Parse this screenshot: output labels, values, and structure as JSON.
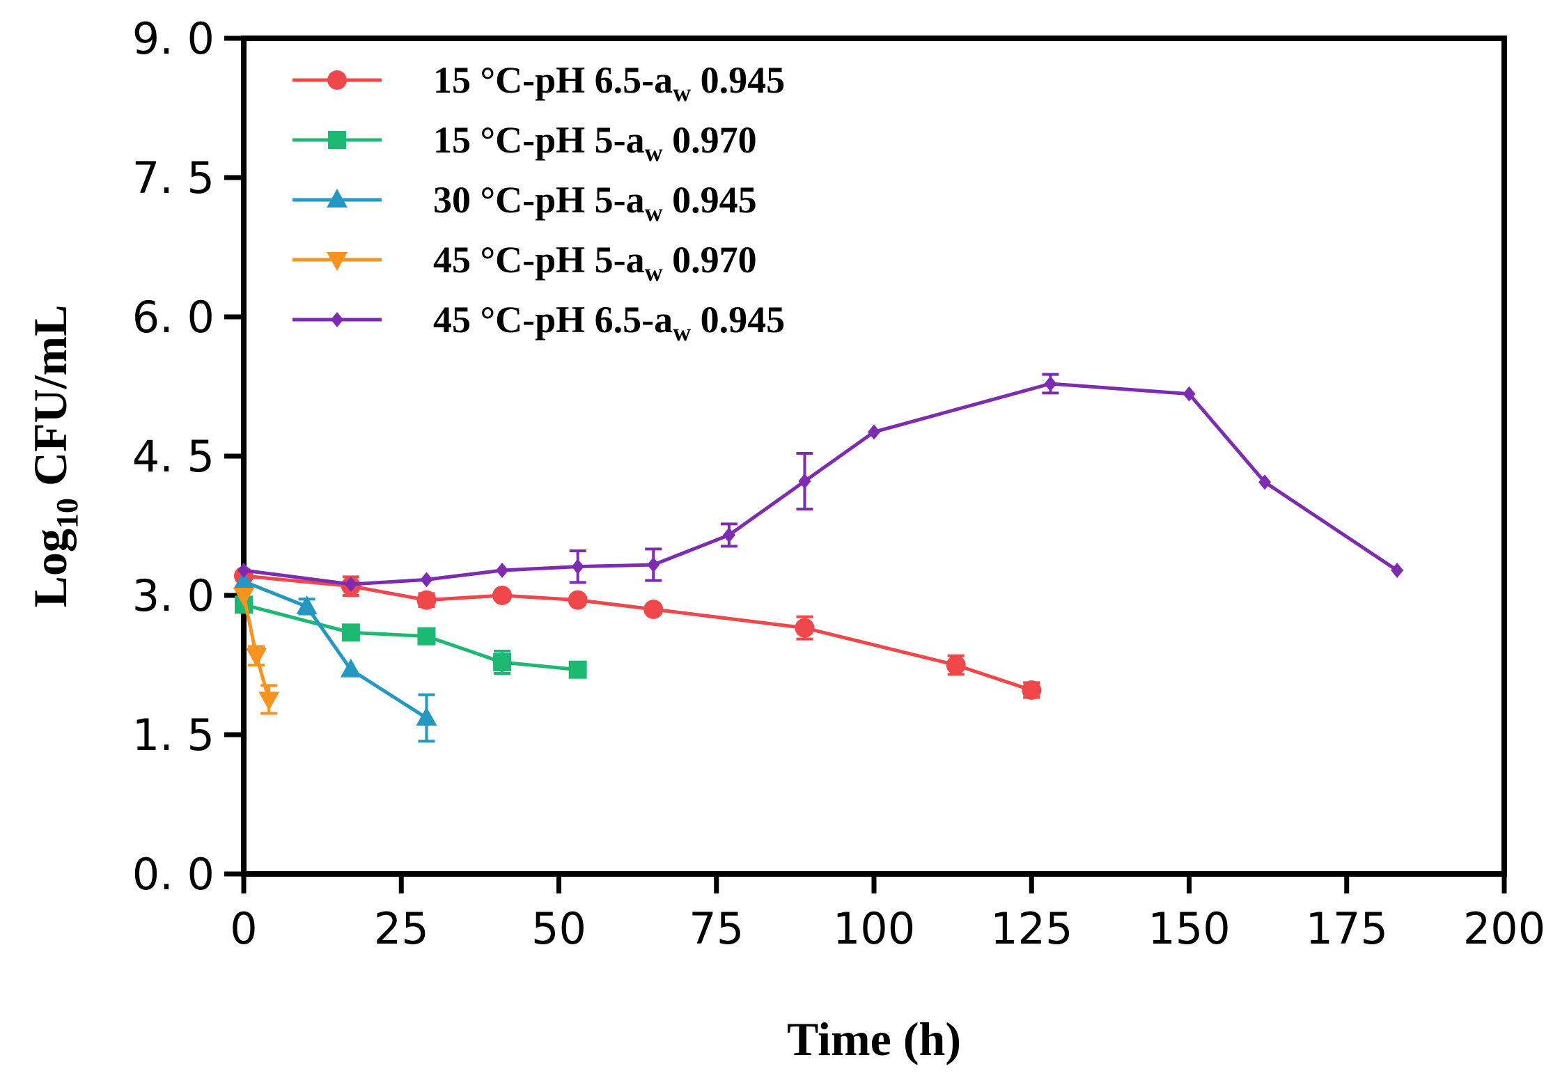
{
  "chart_data": {
    "type": "line",
    "title": "",
    "xlabel": "Time (h)",
    "ylabel": "Log10 CFU/mL",
    "ylabel_parts": {
      "main": "Log",
      "sub": "10",
      "rest": " CFU/mL"
    },
    "xlim": [
      0,
      200
    ],
    "ylim": [
      0,
      9
    ],
    "x_ticks": [
      0,
      25,
      50,
      75,
      100,
      125,
      150,
      175,
      200
    ],
    "x_tick_labels": [
      "0",
      "25",
      "50",
      "75",
      "100",
      "125",
      "150",
      "175",
      "200"
    ],
    "y_ticks": [
      0,
      1.5,
      3,
      4.5,
      6,
      7.5,
      9
    ],
    "y_tick_labels": [
      "0. 0",
      "1. 5",
      "3. 0",
      "4. 5",
      "6. 0",
      "7. 5",
      "9. 0"
    ],
    "grid": false,
    "legend_position": "top-left",
    "series": [
      {
        "name": "15 °C-pH 6.5-aw 0.945",
        "label_prefix": "15 °C-pH 6.5-a",
        "label_sub": "w",
        "label_suffix": " 0.945",
        "color": "#f0474a",
        "marker": "circle",
        "x": [
          0,
          17,
          29,
          41,
          53,
          65,
          89,
          113,
          125
        ],
        "y": [
          3.21,
          3.1,
          2.95,
          3.0,
          2.95,
          2.85,
          2.65,
          2.25,
          1.98
        ],
        "err": [
          0.04,
          0.1,
          0.07,
          0.03,
          0.03,
          0.03,
          0.12,
          0.1,
          0.08
        ]
      },
      {
        "name": "15 °C-pH 5-aw 0.970",
        "label_prefix": "15 °C-pH 5-a",
        "label_sub": "w",
        "label_suffix": " 0.970",
        "color": "#1db871",
        "marker": "square",
        "x": [
          0,
          17,
          29,
          41,
          53
        ],
        "y": [
          2.9,
          2.6,
          2.56,
          2.28,
          2.2
        ],
        "err": [
          0.03,
          0.04,
          0.04,
          0.12,
          0.04
        ]
      },
      {
        "name": "30 °C-pH 5-aw 0.945",
        "label_prefix": "30 °C-pH 5-a",
        "label_sub": "w",
        "label_suffix": " 0.945",
        "color": "#2498c2",
        "marker": "triangle-up",
        "x": [
          0,
          10,
          17,
          29
        ],
        "y": [
          3.15,
          2.88,
          2.2,
          1.68
        ],
        "err": [
          0.03,
          0.08,
          0.03,
          0.25
        ]
      },
      {
        "name": "45 °C-pH 5-aw 0.970",
        "label_prefix": "45 °C-pH 5-a",
        "label_sub": "w",
        "label_suffix": " 0.970",
        "color": "#f7931e",
        "marker": "triangle-down",
        "x": [
          0,
          2,
          4
        ],
        "y": [
          3.0,
          2.35,
          1.88
        ],
        "err": [
          0.03,
          0.1,
          0.15
        ]
      },
      {
        "name": "45 °C-pH 6.5-aw 0.945",
        "label_prefix": "45 °C-pH 6.5-a",
        "label_sub": "w",
        "label_suffix": " 0.945",
        "color": "#7d2bb3",
        "marker": "diamond",
        "x": [
          0,
          17,
          29,
          41,
          53,
          65,
          77,
          89,
          100,
          128,
          150,
          162,
          183
        ],
        "y": [
          3.27,
          3.12,
          3.17,
          3.27,
          3.31,
          3.33,
          3.65,
          4.23,
          4.76,
          5.28,
          5.17,
          4.22,
          3.27
        ],
        "err": [
          0.03,
          0.03,
          0.03,
          0.03,
          0.17,
          0.17,
          0.12,
          0.3,
          0.03,
          0.1,
          0.03,
          0.03,
          0.03
        ]
      }
    ]
  }
}
